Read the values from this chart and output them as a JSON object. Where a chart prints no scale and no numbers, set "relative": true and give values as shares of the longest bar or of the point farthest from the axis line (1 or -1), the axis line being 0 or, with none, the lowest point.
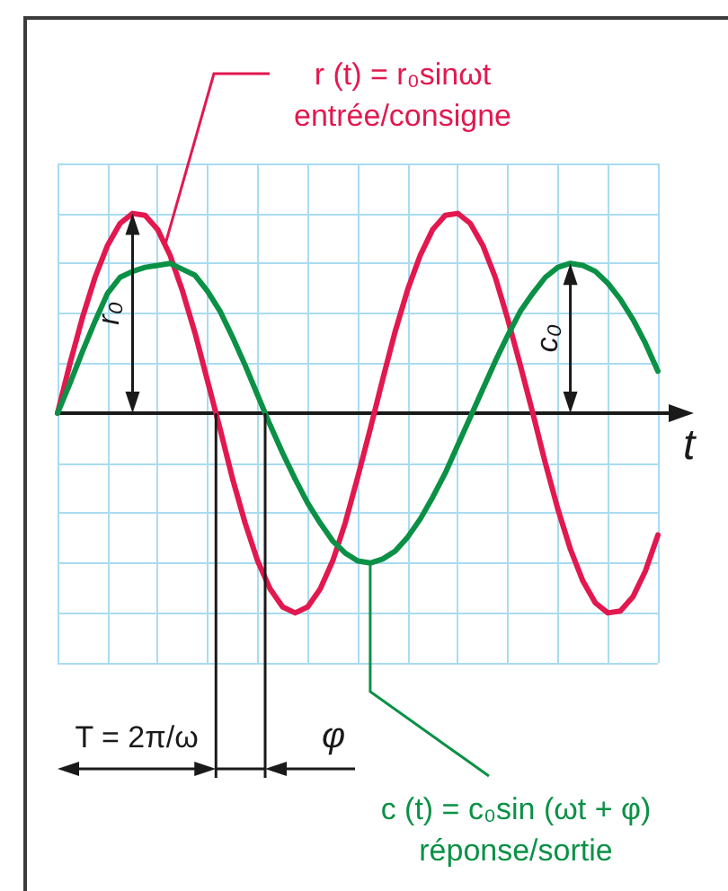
{
  "chart_data": {
    "type": "line",
    "relative": true,
    "xlabel": "t",
    "categories": [
      null,
      null,
      null,
      null,
      null,
      null,
      null,
      null,
      null,
      null,
      null,
      null,
      null,
      null,
      null,
      null,
      null,
      null,
      null,
      null,
      null,
      null,
      null,
      null,
      null,
      null,
      null,
      null,
      null,
      null,
      null,
      null,
      null,
      null,
      null,
      null,
      null,
      null,
      null,
      null,
      null,
      null,
      null,
      null,
      null,
      null,
      null,
      null,
      null
    ],
    "series": [
      {
        "name": "r (t) = r₀sinωt\nentrée/consigne",
        "color": "#e2184f",
        "values": [
          0,
          0.25,
          0.48,
          0.68,
          0.84,
          0.95,
          1,
          0.99,
          0.92,
          0.79,
          0.61,
          0.4,
          0.16,
          -0.08,
          -0.33,
          -0.55,
          -0.74,
          -0.88,
          -0.97,
          -1,
          -0.97,
          -0.88,
          -0.74,
          -0.55,
          -0.32,
          -0.08,
          0.17,
          0.41,
          0.62,
          0.79,
          0.92,
          0.99,
          1,
          0.95,
          0.84,
          0.68,
          0.47,
          0.24,
          0,
          -0.25,
          -0.48,
          -0.68,
          -0.84,
          -0.95,
          -1,
          -0.99,
          -0.92,
          -0.79,
          -0.61
        ]
      },
      {
        "name": "c (t) = c₀sin (ωt + φ)\nréponse/sortie",
        "color": "#0b9146",
        "values": [
          0,
          0.15,
          0.31,
          0.46,
          0.6,
          0.68,
          0.71,
          0.73,
          0.74,
          0.75,
          0.72,
          0.69,
          0.61,
          0.51,
          0.38,
          0.24,
          0.09,
          -0.06,
          -0.2,
          -0.33,
          -0.45,
          -0.55,
          -0.64,
          -0.7,
          -0.74,
          -0.75,
          -0.73,
          -0.69,
          -0.62,
          -0.53,
          -0.42,
          -0.3,
          -0.16,
          -0.02,
          0.12,
          0.26,
          0.39,
          0.51,
          0.6,
          0.68,
          0.73,
          0.75,
          0.74,
          0.71,
          0.65,
          0.57,
          0.47,
          0.35,
          0.21
        ]
      }
    ],
    "annotations": [
      "r₀",
      "c₀",
      "T = 2π/ω",
      "φ"
    ],
    "grid": true,
    "marker": "none",
    "line_style": "solid"
  }
}
